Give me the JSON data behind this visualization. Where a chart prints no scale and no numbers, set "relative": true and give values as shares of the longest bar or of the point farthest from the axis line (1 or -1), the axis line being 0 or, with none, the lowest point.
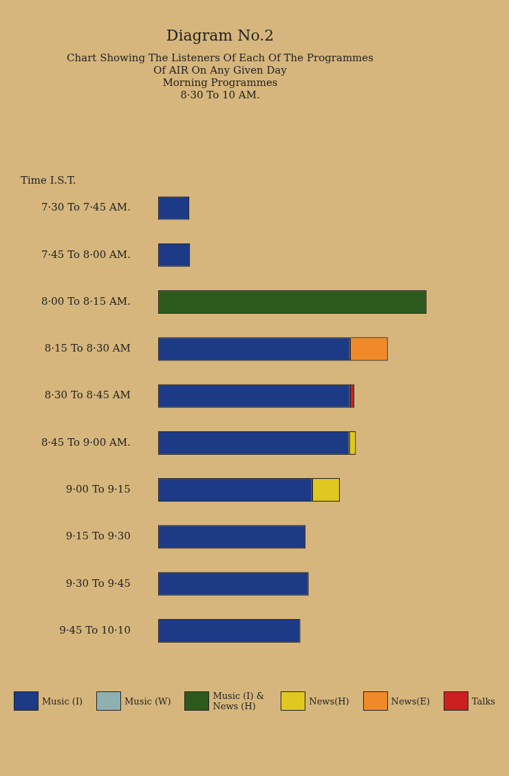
{
  "chart_data": {
    "type": "bar",
    "orientation": "horizontal",
    "stacked": true,
    "relative": true,
    "title": "Diagram No.2",
    "subtitle": "Chart Showing The Listeners Of Each Of The Programmes\nOf AIR On Any Given Day\nMorning Programmes\n8·30 To 10 AM.",
    "ylabel": "Time I.S.T.",
    "categories": [
      "7·30 To 7·45 AM.",
      "7·45 To 8·00 AM.",
      "8·00 To 8·15 AM.",
      "8·15 To 8·30 AM",
      "8·30 To 8·45 AM",
      "8·45 To 9·00 AM.",
      "9·00 To 9·15",
      "9·15 To 9·30",
      "9·30 To 9·45",
      "9·45 To 10·10"
    ],
    "series": [
      {
        "name": "Music (I)",
        "color": "#1c3a86",
        "values": [
          0.116,
          0.119,
          null,
          0.715,
          0.715,
          0.712,
          0.574,
          0.549,
          0.561,
          0.53
        ]
      },
      {
        "name": "Music (W)",
        "color": "#8fb0b0",
        "values": [
          null,
          null,
          null,
          null,
          null,
          null,
          null,
          null,
          null,
          null
        ]
      },
      {
        "name": "Music (I) & News (H)",
        "color": "#2c5a1c",
        "values": [
          null,
          null,
          1,
          null,
          null,
          null,
          null,
          null,
          null,
          null
        ]
      },
      {
        "name": "News(H)",
        "color": "#e0c820",
        "values": [
          null,
          null,
          null,
          null,
          null,
          0.025,
          0.103,
          null,
          null,
          null
        ]
      },
      {
        "name": "News(E)",
        "color": "#f08a28",
        "values": [
          null,
          null,
          null,
          0.141,
          null,
          null,
          null,
          null,
          null,
          null
        ]
      },
      {
        "name": "Talks",
        "color": "#cc2020",
        "values": [
          null,
          null,
          null,
          null,
          0.016,
          null,
          null,
          null,
          null,
          null
        ]
      }
    ],
    "legend": "bottom"
  }
}
